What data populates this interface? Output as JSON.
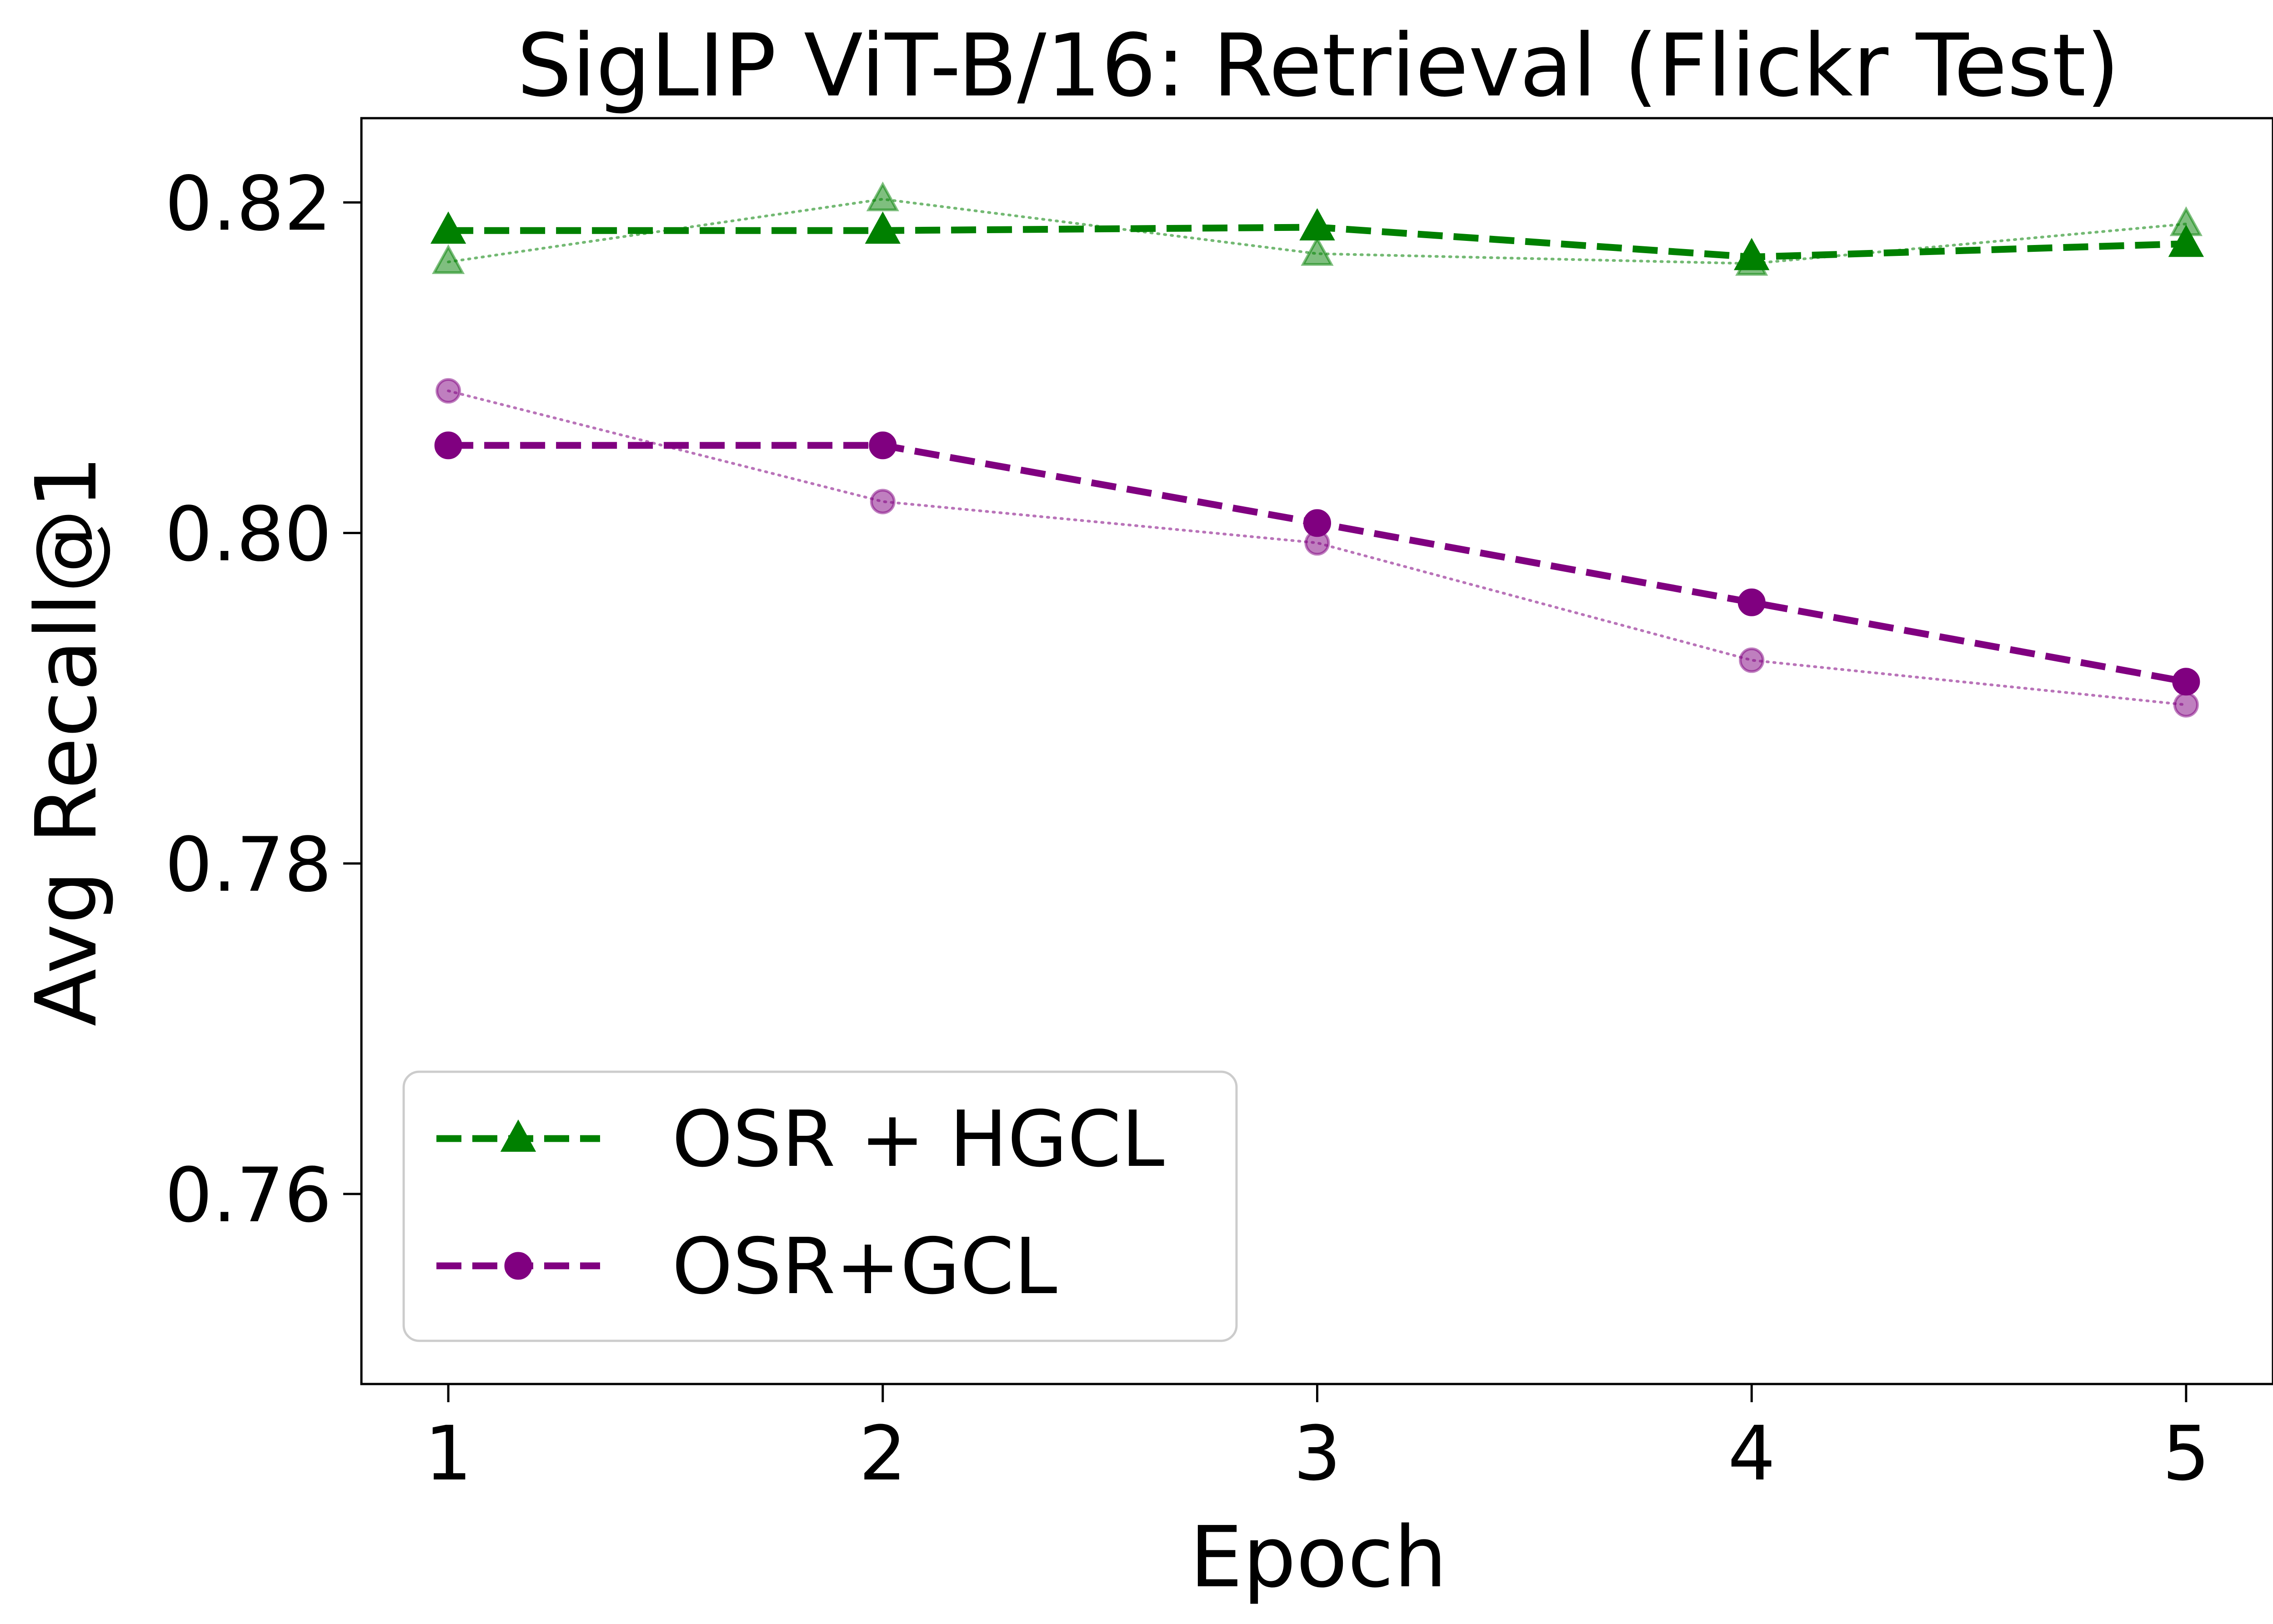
{
  "chart_data": {
    "type": "line",
    "title": "SigLIP ViT-B/16: Retrieval (Flickr Test)",
    "xlabel": "Epoch",
    "ylabel": "Avg Recall@1",
    "x": [
      1,
      2,
      3,
      4,
      5
    ],
    "xlim": [
      0.8,
      5.2
    ],
    "ylim": [
      0.7485,
      0.8251
    ],
    "yticks": [
      "0.76",
      "0.78",
      "0.80",
      "0.82"
    ],
    "xticks": [
      "1",
      "2",
      "3",
      "4",
      "5"
    ],
    "grid": false,
    "legend_position": "lower-left",
    "series": [
      {
        "name": "OSR + HGCL",
        "color": "#008000",
        "marker": "triangle",
        "linestyle": "dashed",
        "values": [
          0.8183,
          0.8183,
          0.8185,
          0.8167,
          0.8175
        ],
        "raw_values": [
          0.8164,
          0.8202,
          0.8169,
          0.8163,
          0.8187
        ]
      },
      {
        "name": "OSR+GCL",
        "color": "#800080",
        "marker": "circle",
        "linestyle": "dashed",
        "values": [
          0.8053,
          0.8053,
          0.8006,
          0.7958,
          0.791
        ],
        "raw_values": [
          0.8086,
          0.8019,
          0.7994,
          0.7923,
          0.7896
        ]
      }
    ]
  }
}
